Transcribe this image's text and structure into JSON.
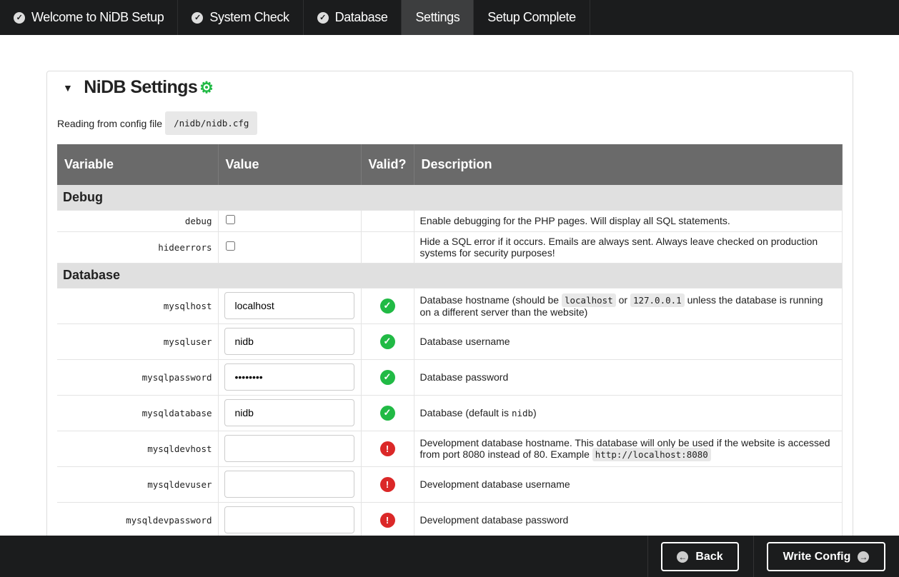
{
  "nav": {
    "tabs": [
      {
        "label": "Welcome to NiDB Setup",
        "done": true
      },
      {
        "label": "System Check",
        "done": true
      },
      {
        "label": "Database",
        "done": true
      },
      {
        "label": "Settings",
        "active": true
      },
      {
        "label": "Setup Complete"
      }
    ]
  },
  "panel": {
    "title": "NiDB Settings",
    "config_label": "Reading from config file",
    "config_path": "/nidb/nidb.cfg"
  },
  "table": {
    "headers": [
      "Variable",
      "Value",
      "Valid?",
      "Description"
    ],
    "groups": {
      "debug": "Debug",
      "database": "Database"
    },
    "rows": {
      "debug": {
        "name": "debug",
        "checked": false,
        "desc": "Enable debugging for the PHP pages. Will display all SQL statements."
      },
      "hideerrors": {
        "name": "hideerrors",
        "checked": false,
        "desc": "Hide a SQL error if it occurs. Emails are always sent. Always leave checked on production systems for security purposes!"
      },
      "mysqlhost": {
        "name": "mysqlhost",
        "value": "localhost",
        "valid": true,
        "desc1": "Database hostname (should be",
        "code1": "localhost",
        "desc2": "or",
        "code2": "127.0.0.1",
        "desc3": "unless the database is running on a different server than the website)"
      },
      "mysqluser": {
        "name": "mysqluser",
        "value": "nidb",
        "valid": true,
        "desc": "Database username"
      },
      "mysqlpassword": {
        "name": "mysqlpassword",
        "value": "password",
        "valid": true,
        "desc": "Database password"
      },
      "mysqldatabase": {
        "name": "mysqldatabase",
        "value": "nidb",
        "valid": true,
        "desc1": "Database (default is",
        "code": "nidb",
        "desc2": ")"
      },
      "mysqldevhost": {
        "name": "mysqldevhost",
        "value": "",
        "valid": false,
        "desc": "Development database hostname. This database will only be used if the website is accessed from port 8080 instead of 80. Example",
        "code": "http://localhost:8080"
      },
      "mysqldevuser": {
        "name": "mysqldevuser",
        "value": "",
        "valid": false,
        "desc": "Development database username"
      },
      "mysqldevpassword": {
        "name": "mysqldevpassword",
        "value": "",
        "valid": false,
        "desc": "Development database password"
      }
    }
  },
  "footer": {
    "back": "Back",
    "write": "Write Config"
  },
  "colors": {
    "valid": "#21ba45",
    "invalid": "#db2828",
    "nav_bg": "#1b1c1d",
    "header_bg": "#6a6a6a"
  }
}
